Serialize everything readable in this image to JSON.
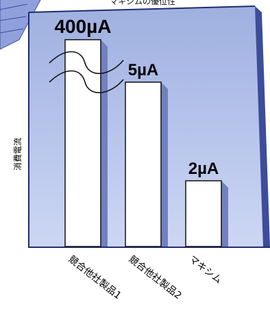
{
  "chart_data": {
    "type": "bar",
    "title": "",
    "ylabel": "消費電流",
    "xlabel": "",
    "categories": [
      "競合他社製品1",
      "競合他社製品2",
      "マキシム"
    ],
    "series": [
      {
        "values": [
          400,
          5,
          2
        ]
      }
    ],
    "value_labels": [
      "400µA",
      "5µA",
      "2µA"
    ],
    "unit": "µA",
    "axis_break": true,
    "grid": false,
    "legend": "none",
    "colors": {
      "panel": "#b9c7ea",
      "panel_edge": "#1e2b6e",
      "bar_fill": "#ffffff",
      "bar_shadow": "#7181c0",
      "burst": "#7b8ed0"
    }
  }
}
